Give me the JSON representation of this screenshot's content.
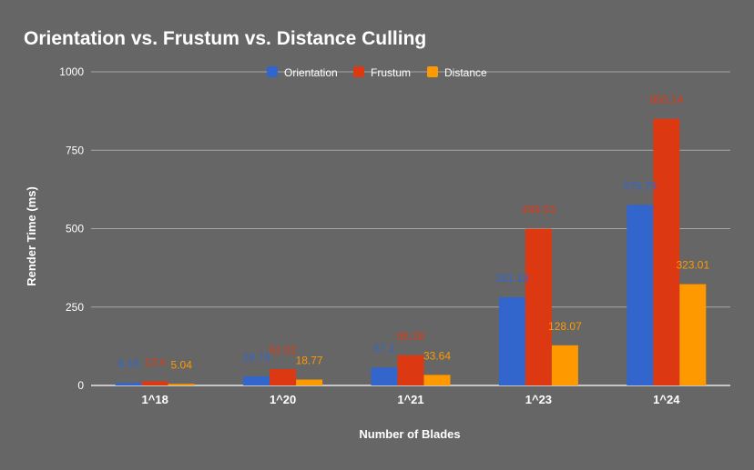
{
  "chart_data": {
    "type": "bar",
    "title": "Orientation vs. Frustum vs. Distance Culling",
    "xlabel": "Number of Blades",
    "ylabel": "Render Time (ms)",
    "ylim": [
      0,
      1000
    ],
    "yticks": [
      0,
      250,
      500,
      750,
      1000
    ],
    "grid": true,
    "legend_position": "top",
    "categories": [
      "1^18",
      "1^20",
      "1^21",
      "1^23",
      "1^24"
    ],
    "series": [
      {
        "name": "Orientation",
        "color": "#3366cc",
        "values": [
          8.16,
          28.74,
          57.1,
          281.18,
          575.79
        ],
        "labels": [
          "8.16",
          "28.74",
          "57.1",
          "281.18",
          "575.79"
        ]
      },
      {
        "name": "Frustum",
        "color": "#dc3912",
        "values": [
          13.4,
          52.02,
          96.28,
          499.53,
          850.14
        ],
        "labels": [
          "13.4",
          "52.02",
          "96.28",
          "499.53",
          "850.14"
        ]
      },
      {
        "name": "Distance",
        "color": "#ff9900",
        "values": [
          5.04,
          18.77,
          33.64,
          128.07,
          323.01
        ],
        "labels": [
          "5.04",
          "18.77",
          "33.64",
          "128.07",
          "323.01"
        ]
      }
    ]
  }
}
